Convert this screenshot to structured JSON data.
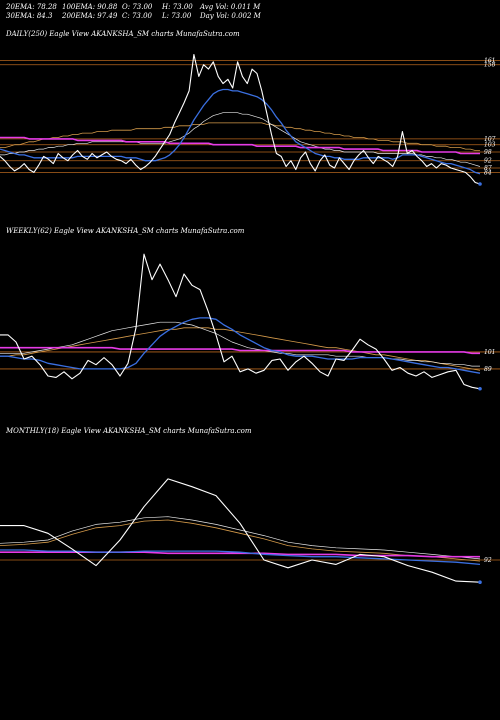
{
  "header": {
    "ema20": "20EMA: 78.28",
    "ema100": "100EMA: 90.88",
    "open": "O: 73.00",
    "high": "H: 73.00",
    "avgvol": "Avg Vol: 0.011 M",
    "ema30": "30EMA: 84.3",
    "ema200": "200EMA: 97.49",
    "close": "C: 73.00",
    "low": "L: 73.00",
    "dayvol": "Day Vol: 0.002 M"
  },
  "panels": {
    "daily": {
      "label": "DAILY(250) Eagle View AKANKSHA_SM charts MunafaSutra.com"
    },
    "weekly": {
      "label": "WEEKLY(62) Eagle View AKANKSHA_SM charts MunafaSutra.com"
    },
    "monthly": {
      "label": "MONTHLY(18) Eagle View AKANKSHA_SM charts MunafaSutra.com"
    }
  },
  "colors": {
    "background": "#000000",
    "price": "#ffffff",
    "ema_fast": "#3a6fe0",
    "ema_slow": "#e8e8e8",
    "ema_200": "#d49a4a",
    "magenta": "#e63be6",
    "level": "#b5651d"
  },
  "chart_data": [
    {
      "type": "line",
      "title": "DAILY(250) Eagle View AKANKSHA_SM charts MunafaSutra.com",
      "ylim": [
        65,
        175
      ],
      "grid": false,
      "yticks": [
        161,
        158,
        107,
        103,
        98,
        92,
        87,
        84
      ],
      "ytick_labels": [
        "161",
        "158",
        "107",
        "103",
        "98",
        "92",
        "87",
        "84"
      ],
      "levels": [
        161,
        158,
        107,
        103,
        98,
        92,
        87,
        84
      ],
      "series": [
        {
          "role": "price",
          "values": [
            95,
            92,
            88,
            85,
            87,
            90,
            86,
            84,
            89,
            95,
            93,
            90,
            97,
            94,
            92,
            96,
            99,
            95,
            93,
            97,
            94,
            96,
            98,
            95,
            93,
            92,
            90,
            93,
            89,
            86,
            88,
            91,
            95,
            100,
            105,
            110,
            118,
            125,
            132,
            140,
            165,
            150,
            158,
            155,
            160,
            150,
            145,
            148,
            142,
            160,
            150,
            145,
            155,
            152,
            140,
            125,
            110,
            97,
            95,
            88,
            92,
            86,
            94,
            98,
            90,
            85,
            92,
            96,
            89,
            87,
            94,
            90,
            86,
            92,
            96,
            99,
            94,
            90,
            95,
            93,
            91,
            88,
            95,
            112,
            97,
            99,
            95,
            92,
            88,
            90,
            87,
            90,
            89,
            87,
            86,
            85,
            84,
            81,
            77,
            76
          ]
        },
        {
          "role": "ema_fast",
          "values": [
            100,
            99,
            98,
            97,
            96,
            96,
            95,
            94,
            94,
            94,
            94,
            94,
            94,
            94,
            94,
            94,
            95,
            95,
            95,
            95,
            95,
            95,
            95,
            95,
            95,
            95,
            94,
            94,
            94,
            93,
            92,
            92,
            92,
            93,
            94,
            96,
            99,
            103,
            108,
            114,
            120,
            125,
            130,
            134,
            138,
            140,
            141,
            141,
            140,
            140,
            139,
            138,
            137,
            136,
            134,
            131,
            127,
            122,
            118,
            113,
            109,
            105,
            103,
            101,
            99,
            97,
            96,
            95,
            95,
            94,
            94,
            93,
            93,
            93,
            93,
            94,
            94,
            94,
            94,
            94,
            94,
            93,
            94,
            96,
            96,
            96,
            96,
            95,
            94,
            93,
            92,
            91,
            90,
            90,
            89,
            88,
            87,
            86,
            84,
            83
          ]
        },
        {
          "role": "ema_slow",
          "values": [
            96,
            96,
            97,
            97,
            98,
            98,
            99,
            99,
            100,
            100,
            101,
            101,
            102,
            102,
            103,
            103,
            104,
            104,
            104,
            105,
            105,
            105,
            105,
            105,
            105,
            105,
            105,
            105,
            105,
            104,
            104,
            104,
            104,
            104,
            104,
            105,
            106,
            107,
            109,
            111,
            114,
            116,
            119,
            121,
            123,
            124,
            125,
            125,
            125,
            125,
            124,
            124,
            123,
            122,
            121,
            119,
            117,
            115,
            113,
            111,
            109,
            107,
            105,
            104,
            103,
            102,
            101,
            100,
            100,
            99,
            99,
            98,
            98,
            98,
            98,
            98,
            98,
            98,
            97,
            97,
            97,
            97,
            97,
            97,
            97,
            97,
            96,
            96,
            95,
            95,
            94,
            94,
            93,
            93,
            92,
            91,
            91,
            90,
            89,
            88
          ]
        },
        {
          "role": "ema_200",
          "values": [
            101,
            101,
            102,
            103,
            103,
            104,
            105,
            105,
            106,
            107,
            107,
            108,
            108,
            109,
            109,
            110,
            110,
            111,
            111,
            111,
            112,
            112,
            112,
            113,
            113,
            113,
            113,
            113,
            114,
            114,
            114,
            114,
            114,
            114,
            115,
            115,
            115,
            116,
            116,
            116,
            117,
            117,
            117,
            118,
            118,
            118,
            118,
            118,
            118,
            118,
            118,
            118,
            118,
            118,
            118,
            117,
            117,
            116,
            116,
            115,
            115,
            114,
            114,
            113,
            113,
            112,
            112,
            111,
            111,
            110,
            110,
            109,
            109,
            108,
            108,
            108,
            107,
            107,
            106,
            106,
            106,
            105,
            105,
            105,
            104,
            104,
            104,
            103,
            103,
            103,
            102,
            102,
            102,
            101,
            101,
            101,
            100,
            100,
            99,
            99
          ]
        },
        {
          "role": "magenta",
          "values": [
            108,
            108,
            108,
            108,
            108,
            108,
            107,
            107,
            107,
            107,
            107,
            107,
            107,
            107,
            107,
            107,
            106,
            106,
            106,
            106,
            106,
            106,
            106,
            106,
            106,
            106,
            105,
            105,
            105,
            105,
            105,
            105,
            105,
            105,
            105,
            104,
            104,
            104,
            104,
            104,
            104,
            104,
            104,
            104,
            103,
            103,
            103,
            103,
            103,
            103,
            103,
            103,
            103,
            102,
            102,
            102,
            102,
            102,
            102,
            102,
            102,
            102,
            101,
            101,
            101,
            101,
            101,
            101,
            101,
            101,
            101,
            100,
            100,
            100,
            100,
            100,
            100,
            100,
            100,
            99,
            99,
            99,
            99,
            99,
            99,
            99,
            99,
            98,
            98,
            98,
            98,
            98,
            98,
            98,
            98,
            97,
            97,
            97,
            97,
            97
          ]
        }
      ]
    },
    {
      "type": "line",
      "title": "WEEKLY(62) Eagle View AKANKSHA_SM charts MunafaSutra.com",
      "ylim": [
        60,
        180
      ],
      "grid": false,
      "yticks": [
        101,
        89
      ],
      "ytick_labels": [
        "101",
        "89"
      ],
      "levels": [
        101,
        89
      ],
      "series": [
        {
          "role": "price",
          "values": [
            113,
            113,
            108,
            96,
            98,
            92,
            84,
            83,
            87,
            82,
            86,
            95,
            92,
            97,
            92,
            84,
            93,
            118,
            170,
            152,
            163,
            152,
            140,
            156,
            148,
            145,
            130,
            113,
            94,
            98,
            87,
            89,
            86,
            88,
            95,
            96,
            88,
            94,
            98,
            93,
            87,
            84,
            96,
            95,
            102,
            110,
            106,
            103,
            96,
            88,
            90,
            86,
            84,
            87,
            83,
            85,
            87,
            88,
            78,
            76,
            75
          ]
        },
        {
          "role": "ema_fast",
          "values": [
            98,
            98,
            97,
            96,
            96,
            95,
            93,
            92,
            91,
            90,
            89,
            89,
            89,
            89,
            89,
            89,
            90,
            93,
            100,
            106,
            112,
            116,
            119,
            122,
            124,
            125,
            125,
            124,
            120,
            117,
            113,
            110,
            107,
            104,
            102,
            101,
            99,
            98,
            98,
            98,
            97,
            96,
            96,
            96,
            96,
            97,
            97,
            97,
            97,
            96,
            95,
            94,
            93,
            92,
            91,
            90,
            90,
            89,
            88,
            87,
            86
          ]
        },
        {
          "role": "ema_slow",
          "values": [
            100,
            100,
            100,
            100,
            101,
            102,
            103,
            104,
            105,
            106,
            108,
            110,
            112,
            114,
            116,
            117,
            118,
            119,
            120,
            121,
            122,
            122,
            122,
            121,
            120,
            118,
            116,
            114,
            111,
            108,
            106,
            104,
            103,
            102,
            101,
            100,
            100,
            99,
            99,
            99,
            99,
            99,
            98,
            98,
            98,
            98,
            97,
            97,
            97,
            96,
            96,
            95,
            95,
            94,
            94,
            93,
            93,
            92,
            92,
            91,
            91
          ]
        },
        {
          "role": "ema_200",
          "values": [
            98,
            98,
            99,
            99,
            100,
            101,
            102,
            103,
            104,
            105,
            106,
            107,
            108,
            109,
            110,
            111,
            112,
            113,
            114,
            115,
            116,
            117,
            117,
            118,
            118,
            118,
            118,
            117,
            117,
            116,
            115,
            114,
            113,
            112,
            111,
            110,
            109,
            108,
            107,
            106,
            105,
            104,
            104,
            103,
            102,
            101,
            100,
            99,
            99,
            98,
            97,
            96,
            95,
            95,
            94,
            93,
            92,
            91,
            90,
            89,
            88
          ]
        },
        {
          "role": "magenta",
          "values": [
            104,
            104,
            104,
            104,
            104,
            104,
            104,
            104,
            104,
            104,
            104,
            104,
            104,
            104,
            104,
            103,
            103,
            103,
            103,
            103,
            103,
            103,
            103,
            103,
            103,
            103,
            103,
            103,
            103,
            103,
            102,
            102,
            102,
            102,
            102,
            102,
            102,
            102,
            102,
            102,
            102,
            102,
            102,
            102,
            101,
            101,
            101,
            101,
            101,
            101,
            101,
            101,
            101,
            101,
            101,
            101,
            101,
            101,
            101,
            100,
            100
          ]
        }
      ]
    },
    {
      "type": "line",
      "title": "MONTHLY(18) Eagle View AKANKSHA_SM charts MunafaSutra.com",
      "ylim": [
        20,
        200
      ],
      "grid": false,
      "yticks": [
        92
      ],
      "ytick_labels": [
        "92"
      ],
      "levels": [
        92
      ],
      "series": [
        {
          "role": "price",
          "values": [
            123,
            123,
            116,
            102,
            87,
            110,
            140,
            165,
            158,
            150,
            125,
            92,
            85,
            92,
            88,
            97,
            95,
            87,
            81,
            73,
            72
          ]
        },
        {
          "role": "ema_fast",
          "values": [
            101,
            101,
            100,
            100,
            99,
            99,
            100,
            100,
            100,
            100,
            99,
            97,
            96,
            95,
            95,
            94,
            93,
            92,
            91,
            90,
            88
          ]
        },
        {
          "role": "ema_slow",
          "values": [
            107,
            108,
            110,
            118,
            124,
            126,
            130,
            131,
            128,
            124,
            119,
            114,
            108,
            105,
            103,
            102,
            101,
            99,
            97,
            95,
            93
          ]
        },
        {
          "role": "ema_200",
          "values": [
            105,
            106,
            108,
            115,
            121,
            123,
            127,
            128,
            125,
            121,
            116,
            111,
            105,
            102,
            100,
            99,
            98,
            96,
            95,
            93,
            91
          ]
        },
        {
          "role": "magenta",
          "values": [
            99,
            99,
            99,
            99,
            99,
            99,
            99,
            98,
            98,
            98,
            98,
            98,
            97,
            97,
            97,
            96,
            96,
            96,
            95,
            95,
            95
          ]
        }
      ]
    }
  ]
}
